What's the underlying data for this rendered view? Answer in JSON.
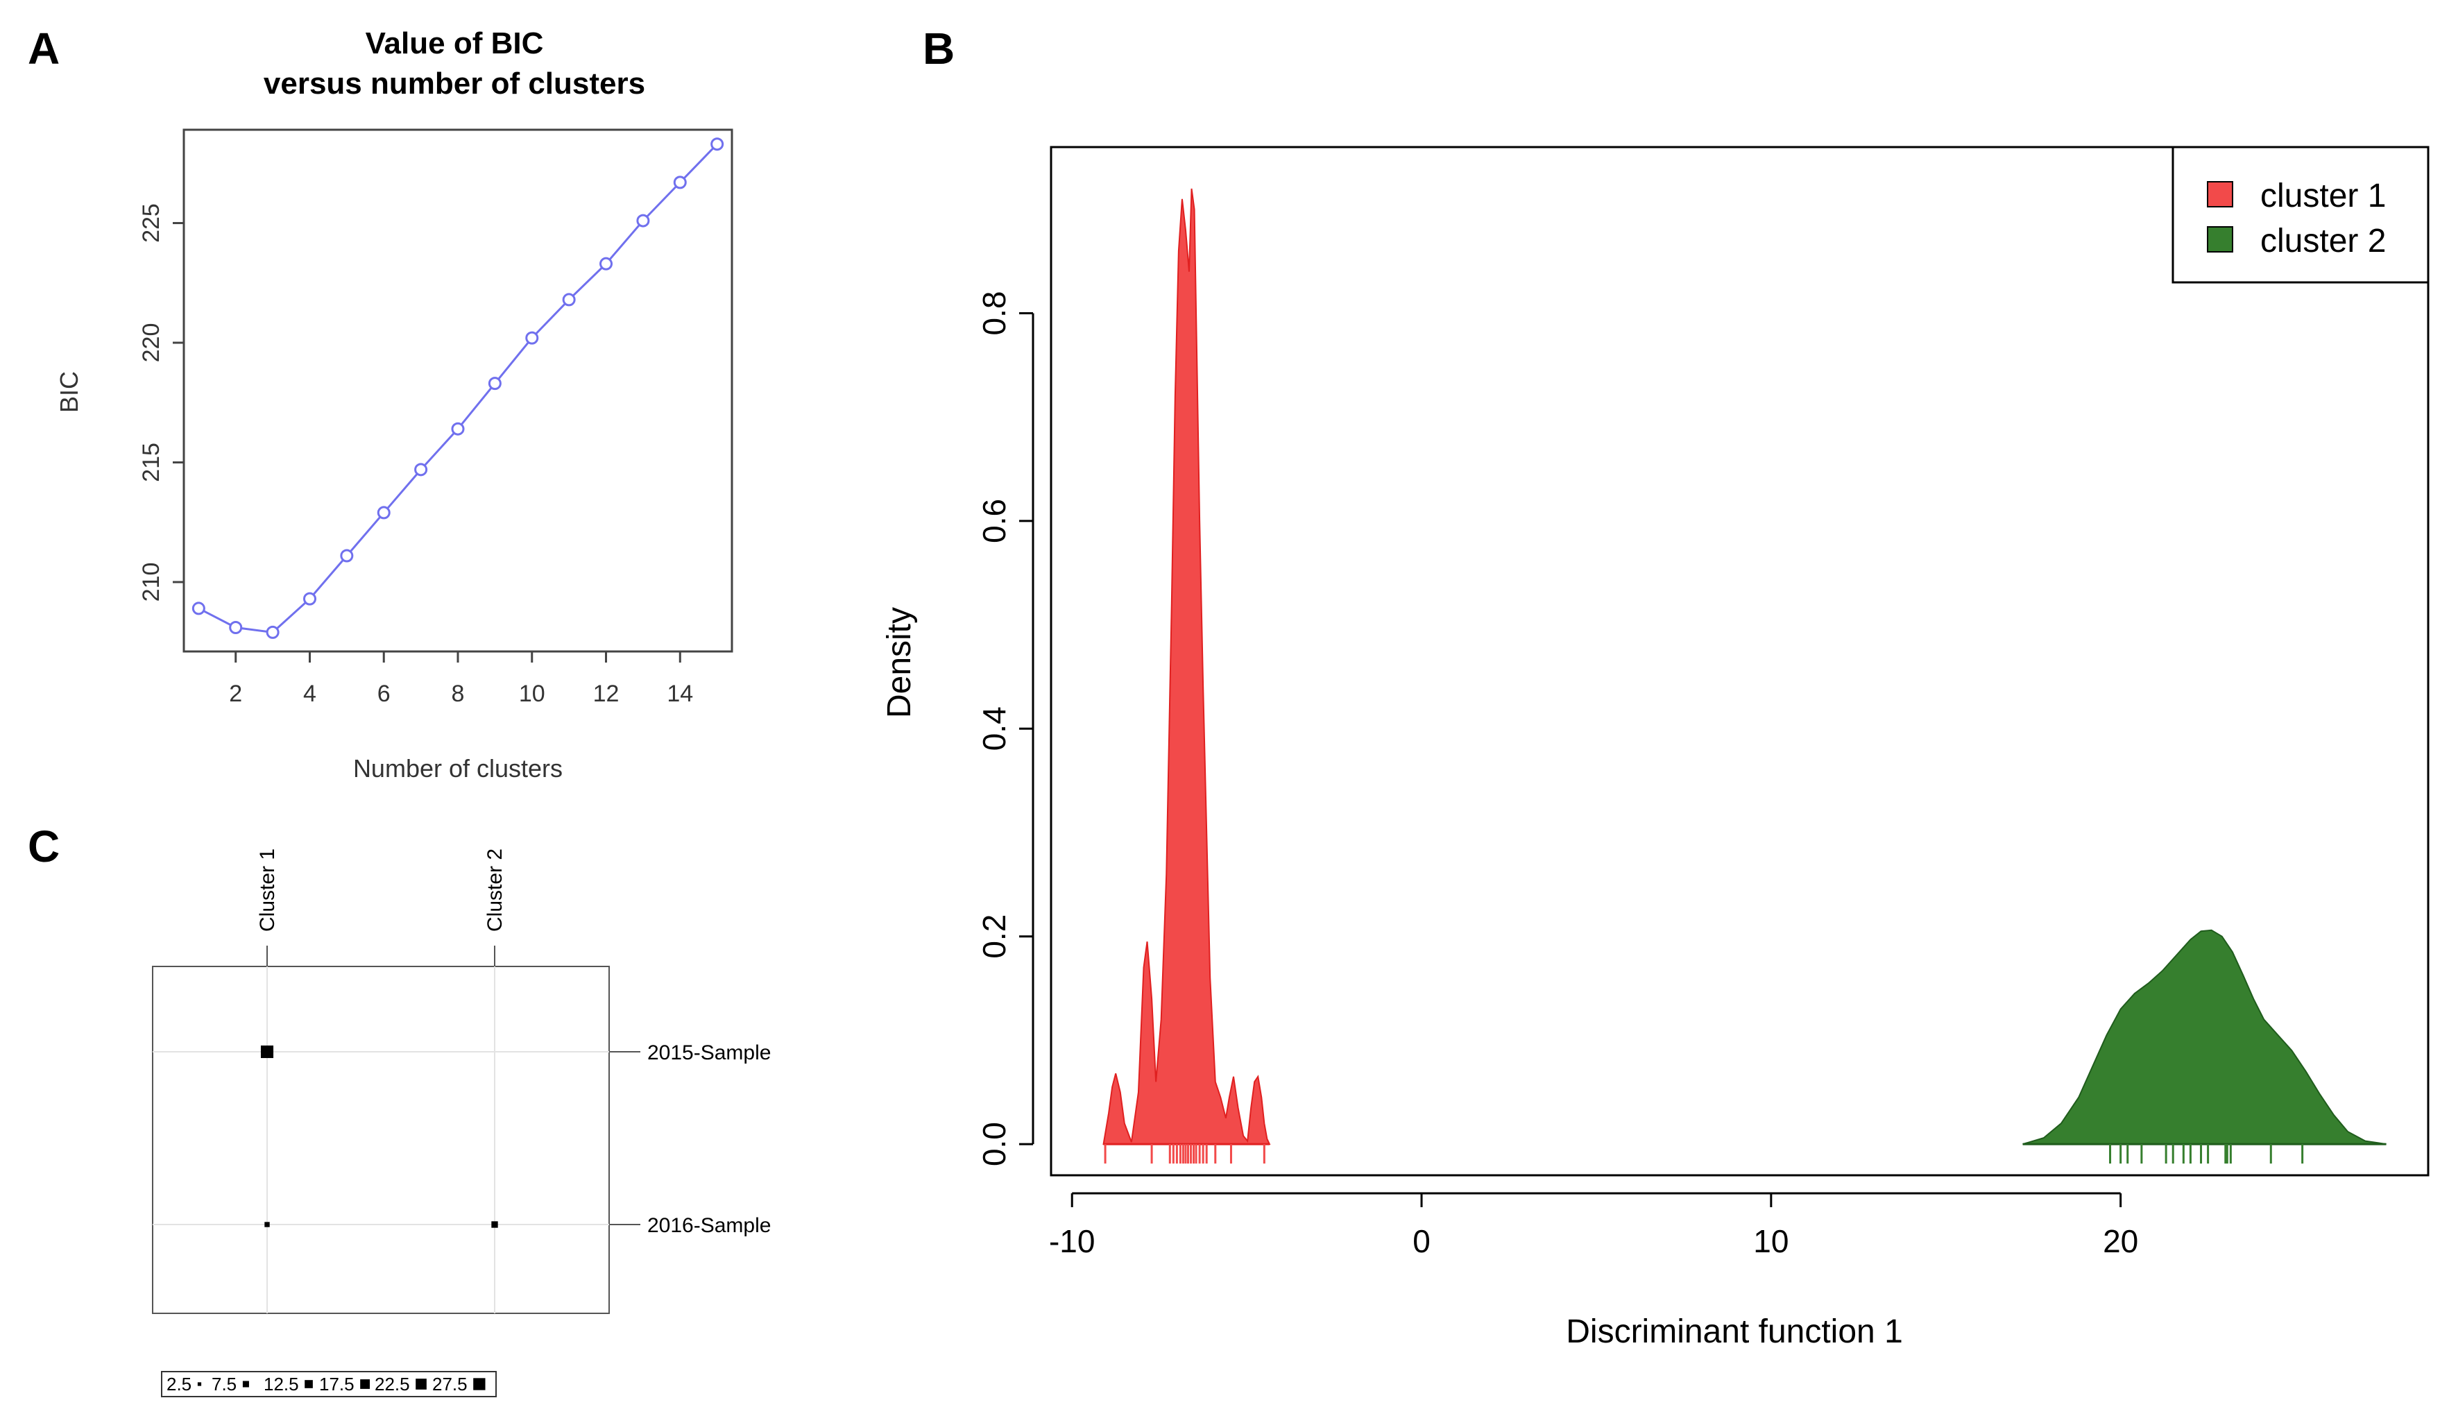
{
  "panels": {
    "a": {
      "letter": "A"
    },
    "b": {
      "letter": "B"
    },
    "c": {
      "letter": "C"
    }
  },
  "chart_data": [
    {
      "id": "A",
      "type": "line",
      "title_line1": "Value of BIC",
      "title_line2": "versus number of clusters",
      "xlabel": "Number of clusters",
      "ylabel": "BIC",
      "x": [
        1,
        2,
        3,
        4,
        5,
        6,
        7,
        8,
        9,
        10,
        11,
        12,
        13,
        14,
        15
      ],
      "y": [
        208.9,
        208.1,
        207.9,
        209.3,
        211.1,
        212.9,
        214.7,
        216.4,
        218.3,
        220.2,
        221.8,
        223.3,
        225.1,
        226.7,
        228.3
      ],
      "xlim": [
        0.6,
        15.4
      ],
      "ylim": [
        207.1,
        228.9
      ],
      "xticks": [
        "2",
        "4",
        "6",
        "8",
        "10",
        "12",
        "14"
      ],
      "xtick_values": [
        2,
        4,
        6,
        8,
        10,
        12,
        14
      ],
      "yticks": [
        "210",
        "215",
        "220",
        "225"
      ],
      "ytick_values": [
        210,
        215,
        220,
        225
      ],
      "color": "#7070ee"
    },
    {
      "id": "B",
      "type": "area",
      "xlabel": "Discriminant function 1",
      "ylabel": "Density",
      "xlim": [
        -10.6,
        28.8
      ],
      "ylim": [
        -0.03,
        0.96
      ],
      "xticks": [
        "-10",
        "0",
        "10",
        "20"
      ],
      "xtick_values": [
        -10,
        0,
        10,
        20
      ],
      "yticks": [
        "0.0",
        "0.2",
        "0.4",
        "0.6",
        "0.8"
      ],
      "ytick_values": [
        0,
        0.2,
        0.4,
        0.6,
        0.8
      ],
      "legend": {
        "position": "top-right",
        "entries": [
          "cluster 1",
          "cluster 2"
        ]
      },
      "series": [
        {
          "name": "cluster 1",
          "fill": "#f24a4a",
          "stroke": "#e02020",
          "x": [
            -9.1,
            -8.95,
            -8.85,
            -8.75,
            -8.62,
            -8.5,
            -8.3,
            -8.1,
            -7.95,
            -7.85,
            -7.72,
            -7.6,
            -7.45,
            -7.3,
            -7.15,
            -7.05,
            -6.95,
            -6.85,
            -6.75,
            -6.65,
            -6.58,
            -6.5,
            -6.42,
            -6.35,
            -6.25,
            -6.15,
            -6.05,
            -5.9,
            -5.75,
            -5.6,
            -5.5,
            -5.38,
            -5.25,
            -5.1,
            -4.98,
            -4.88,
            -4.78,
            -4.68,
            -4.58,
            -4.5,
            -4.42,
            -4.35
          ],
          "y": [
            0,
            0.03,
            0.055,
            0.068,
            0.05,
            0.02,
            0.002,
            0.05,
            0.17,
            0.195,
            0.14,
            0.06,
            0.12,
            0.26,
            0.52,
            0.72,
            0.86,
            0.91,
            0.88,
            0.84,
            0.92,
            0.9,
            0.74,
            0.6,
            0.44,
            0.3,
            0.16,
            0.06,
            0.045,
            0.025,
            0.045,
            0.065,
            0.035,
            0.008,
            0.003,
            0.035,
            0.06,
            0.065,
            0.045,
            0.02,
            0.005,
            0
          ],
          "rug": [
            -9.05,
            -7.72,
            -7.2,
            -7.1,
            -7.0,
            -6.9,
            -6.82,
            -6.75,
            -6.68,
            -6.6,
            -6.52,
            -6.45,
            -6.35,
            -6.25,
            -6.15,
            -5.9,
            -5.45,
            -4.5
          ]
        },
        {
          "name": "cluster 2",
          "fill": "#367f2e",
          "stroke": "#1f5c1c",
          "x": [
            17.2,
            17.8,
            18.3,
            18.8,
            19.2,
            19.6,
            20.0,
            20.4,
            20.8,
            21.2,
            21.6,
            22.0,
            22.3,
            22.6,
            22.9,
            23.2,
            23.5,
            23.8,
            24.1,
            24.5,
            24.9,
            25.3,
            25.7,
            26.1,
            26.5,
            27.0,
            27.6
          ],
          "y": [
            0,
            0.006,
            0.02,
            0.045,
            0.075,
            0.105,
            0.13,
            0.145,
            0.155,
            0.167,
            0.182,
            0.197,
            0.205,
            0.206,
            0.2,
            0.185,
            0.163,
            0.14,
            0.12,
            0.105,
            0.09,
            0.07,
            0.048,
            0.028,
            0.012,
            0.003,
            0
          ],
          "rug": [
            19.7,
            20.0,
            20.2,
            20.6,
            21.3,
            21.5,
            21.8,
            22.0,
            22.3,
            22.5,
            23.0,
            23.05,
            23.15,
            24.3,
            25.2
          ]
        }
      ]
    },
    {
      "id": "C",
      "type": "table",
      "columns": [
        "Cluster 1",
        "Cluster 2"
      ],
      "rows": [
        "2015-Sample",
        "2016-Sample"
      ],
      "values": [
        [
          30,
          0
        ],
        [
          5,
          8
        ]
      ],
      "key_labels": [
        "2.5",
        "7.5",
        "12.5",
        "17.5",
        "22.5",
        "27.5"
      ],
      "key_values": [
        2.5,
        7.5,
        12.5,
        17.5,
        22.5,
        27.5
      ]
    }
  ]
}
